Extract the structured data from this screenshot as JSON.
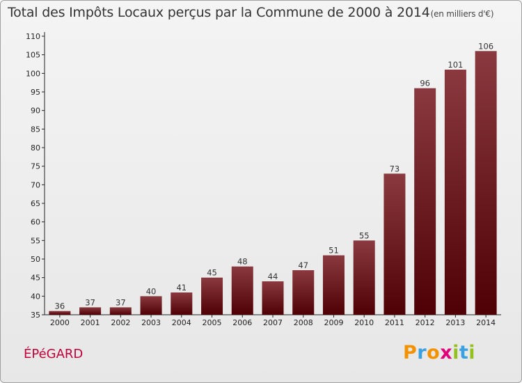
{
  "title": "Total des Impôts Locaux perçus par la Commune de 2000 à 2014",
  "title_unit": "(en milliers d'€)",
  "commune": "ÉPéGARD",
  "logo_letters": [
    {
      "char": "P",
      "color": "#f39200"
    },
    {
      "char": "r",
      "color": "#3aa0e0"
    },
    {
      "char": "o",
      "color": "#f39200"
    },
    {
      "char": "x",
      "color": "#e2007a"
    },
    {
      "char": "i",
      "color": "#95c11f"
    },
    {
      "char": "t",
      "color": "#3aa0e0"
    },
    {
      "char": "i",
      "color": "#95c11f"
    }
  ],
  "chart_data": {
    "type": "bar",
    "title": "Total des Impôts Locaux perçus par la Commune de 2000 à 2014 (en milliers d'€)",
    "xlabel": "",
    "ylabel": "",
    "categories": [
      "2000",
      "2001",
      "2002",
      "2003",
      "2004",
      "2005",
      "2006",
      "2007",
      "2008",
      "2009",
      "2010",
      "2011",
      "2012",
      "2013",
      "2014"
    ],
    "values": [
      36,
      37,
      37,
      40,
      41,
      45,
      48,
      44,
      47,
      51,
      55,
      73,
      96,
      101,
      106
    ],
    "ylim": [
      35,
      110
    ],
    "yticks": [
      35,
      40,
      45,
      50,
      55,
      60,
      65,
      70,
      75,
      80,
      85,
      90,
      95,
      100,
      105,
      110
    ],
    "grid": false,
    "bar_color_light": "#8a3a3f",
    "bar_color_dark": "#4e0004"
  }
}
